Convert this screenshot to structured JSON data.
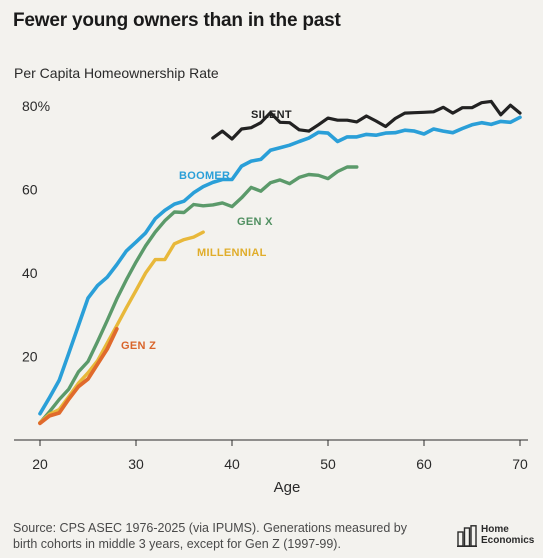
{
  "title": "Fewer young owners than in the past",
  "source": "Source: CPS ASEC 1976-2025 (via IPUMS). Generations measured by birth cohorts in middle 3 years, except for Gen Z (1997-99).",
  "logo_text": "Home\nEconomics",
  "chart_data": {
    "type": "line",
    "title": "Fewer young owners than in the past",
    "ylabel": "Per Capita Homeownership Rate",
    "xlabel": "Age",
    "xlim": [
      19.8,
      70.2
    ],
    "ylim": [
      0,
      85
    ],
    "x_ticks": [
      20,
      30,
      40,
      50,
      60,
      70
    ],
    "x_tick_labels": [
      "20",
      "30",
      "40",
      "50",
      "60",
      "70"
    ],
    "y_ticks": [
      20,
      40,
      60,
      80
    ],
    "y_tick_labels": [
      "20",
      "40",
      "60",
      "80%"
    ],
    "grid": false,
    "series": [
      {
        "name": "SILENT",
        "color": "#222222",
        "x": [
          38,
          39,
          40,
          41,
          42,
          43,
          44,
          45,
          46,
          47,
          48,
          49,
          50,
          51,
          52,
          53,
          54,
          55,
          56,
          57,
          58,
          59,
          60,
          61,
          62,
          63,
          64,
          65,
          66,
          67,
          68,
          69,
          70
        ],
        "values": [
          72.3,
          74.0,
          72.1,
          74.5,
          74.8,
          76.0,
          78.4,
          76.1,
          76.0,
          74.3,
          74.0,
          75.5,
          77.1,
          76.6,
          76.6,
          76.2,
          77.6,
          76.4,
          75.1,
          77.0,
          78.3,
          78.4,
          78.5,
          78.6,
          79.7,
          78.3,
          79.6,
          79.6,
          80.8,
          81.1,
          77.9,
          80.2,
          78.3
        ]
      },
      {
        "name": "BOOMER",
        "color": "#2a9fd8",
        "x": [
          20,
          21,
          22,
          23,
          24,
          25,
          26,
          27,
          28,
          29,
          30,
          31,
          32,
          33,
          34,
          35,
          36,
          37,
          38,
          39,
          40,
          41,
          42,
          43,
          44,
          45,
          46,
          47,
          48,
          49,
          50,
          51,
          52,
          53,
          54,
          55,
          56,
          57,
          58,
          59,
          60,
          61,
          62,
          63,
          64,
          65,
          66,
          67,
          68,
          69,
          70
        ],
        "values": [
          6.3,
          10.2,
          14.3,
          20.8,
          27.4,
          34.0,
          37.0,
          39.0,
          42.0,
          45.3,
          47.4,
          49.6,
          53.0,
          55.0,
          56.5,
          57.2,
          59.2,
          60.7,
          61.7,
          62.4,
          62.4,
          65.6,
          66.8,
          67.2,
          69.4,
          70.0,
          70.6,
          71.5,
          72.3,
          73.7,
          73.5,
          71.5,
          72.6,
          72.6,
          73.2,
          73.0,
          73.5,
          73.6,
          74.2,
          74.0,
          73.3,
          74.5,
          74.0,
          73.6,
          74.6,
          75.5,
          76.0,
          75.6,
          76.3,
          76.1,
          77.3
        ]
      },
      {
        "name": "GEN X",
        "color": "#5b9a6a",
        "x": [
          20,
          21,
          22,
          23,
          24,
          25,
          26,
          27,
          28,
          29,
          30,
          31,
          32,
          33,
          34,
          35,
          36,
          37,
          38,
          39,
          40,
          41,
          42,
          43,
          44,
          45,
          46,
          47,
          48,
          49,
          50,
          51,
          52,
          53
        ],
        "values": [
          4.1,
          6.8,
          9.7,
          12.2,
          16.3,
          18.8,
          23.6,
          28.6,
          33.8,
          38.4,
          42.6,
          46.5,
          49.8,
          52.5,
          54.6,
          54.5,
          56.4,
          56.1,
          56.3,
          56.8,
          55.9,
          58.0,
          60.5,
          59.6,
          61.6,
          62.3,
          61.4,
          62.9,
          63.6,
          63.4,
          62.6,
          64.3,
          65.4,
          65.4
        ]
      },
      {
        "name": "MILLENNIAL",
        "color": "#e8b83a",
        "x": [
          20,
          21,
          22,
          23,
          24,
          25,
          26,
          27,
          28,
          29,
          30,
          31,
          32,
          33,
          34,
          35,
          36,
          37
        ],
        "values": [
          4.2,
          6.2,
          7.3,
          10.4,
          13.6,
          16.1,
          19.0,
          23.2,
          27.4,
          31.7,
          35.8,
          40.0,
          43.2,
          43.2,
          47.0,
          48.0,
          48.6,
          49.8
        ]
      },
      {
        "name": "GEN Z",
        "color": "#e06a2c",
        "x": [
          20,
          21,
          22,
          23,
          24,
          25,
          26,
          27,
          28
        ],
        "values": [
          4.0,
          5.8,
          6.5,
          9.8,
          12.8,
          14.6,
          18.2,
          21.8,
          26.6
        ]
      }
    ]
  }
}
